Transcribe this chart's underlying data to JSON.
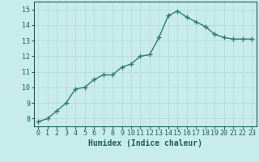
{
  "x": [
    0,
    1,
    2,
    3,
    4,
    5,
    6,
    7,
    8,
    9,
    10,
    11,
    12,
    13,
    14,
    15,
    16,
    17,
    18,
    19,
    20,
    21,
    22,
    23
  ],
  "y": [
    7.8,
    8.0,
    8.5,
    9.0,
    9.9,
    10.0,
    10.5,
    10.8,
    10.8,
    11.3,
    11.5,
    12.0,
    12.1,
    13.2,
    14.6,
    14.9,
    14.5,
    14.2,
    13.9,
    13.4,
    13.2,
    13.1,
    13.1,
    13.1
  ],
  "line_color": "#2e7d6e",
  "marker": "+",
  "marker_size": 4,
  "bg_color": "#c8ecec",
  "grid_color": "#b8d8d8",
  "xlabel": "Humidex (Indice chaleur)",
  "ylabel": "",
  "title": "",
  "xlim": [
    -0.5,
    23.5
  ],
  "ylim": [
    7.5,
    15.5
  ],
  "yticks": [
    8,
    9,
    10,
    11,
    12,
    13,
    14,
    15
  ],
  "xticks": [
    0,
    1,
    2,
    3,
    4,
    5,
    6,
    7,
    8,
    9,
    10,
    11,
    12,
    13,
    14,
    15,
    16,
    17,
    18,
    19,
    20,
    21,
    22,
    23
  ],
  "xlabel_color": "#1a5f55",
  "tick_color": "#1a5f55",
  "line_width": 1.0,
  "font_size_ticks": 6.0,
  "font_size_xlabel": 7.0
}
